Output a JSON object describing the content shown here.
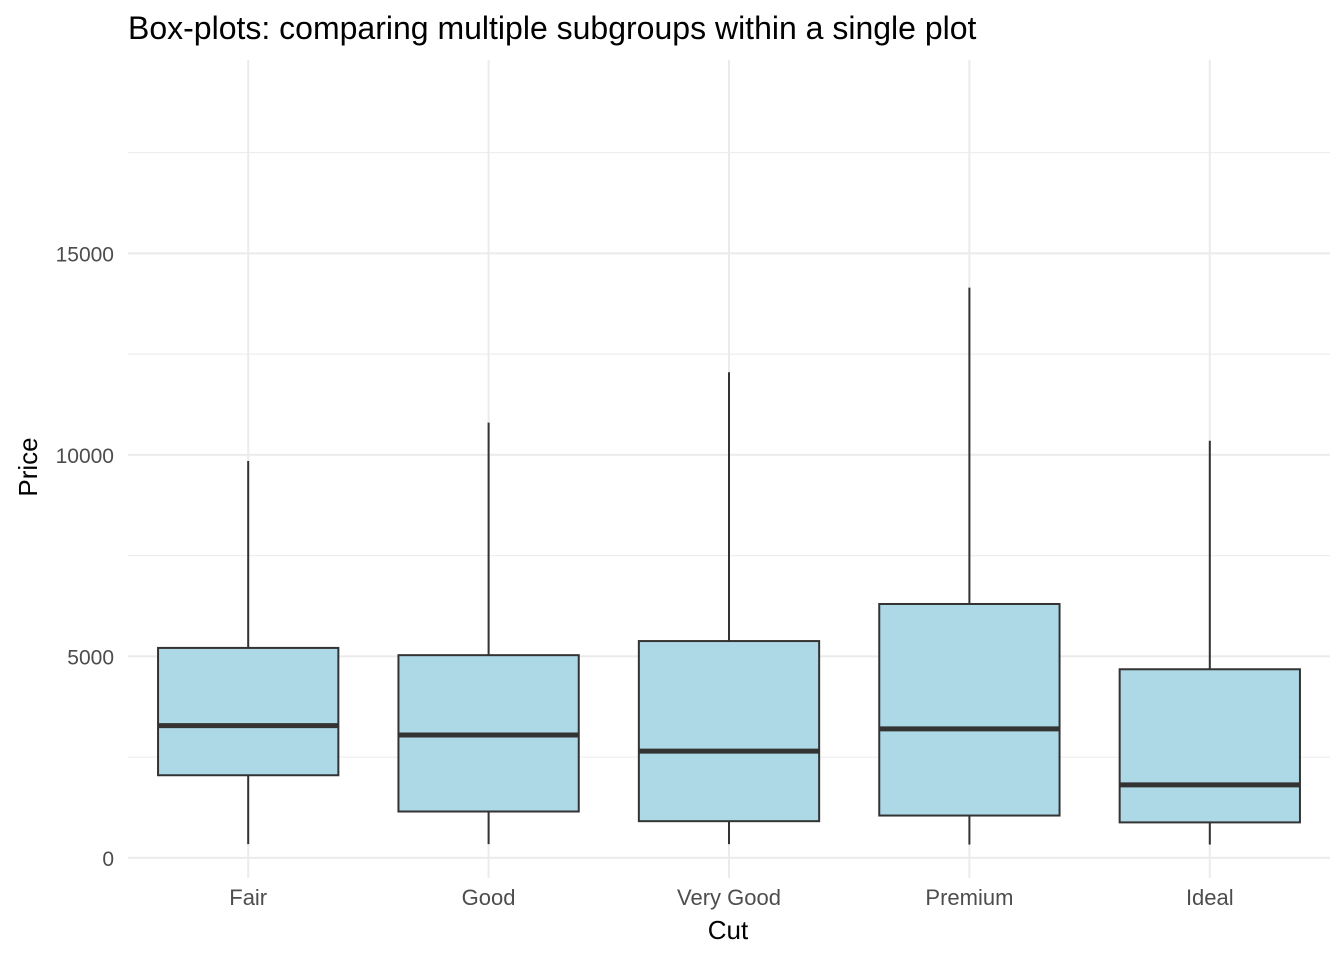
{
  "chart_data": {
    "type": "box",
    "title": "Box-plots: comparing multiple subgroups within a single plot",
    "xlabel": "Cut",
    "ylabel": "Price",
    "ylim": [
      -500,
      19800
    ],
    "yticks": [
      0,
      5000,
      10000,
      15000
    ],
    "yticks_minor": [
      2500,
      7500,
      12500,
      17500
    ],
    "grid": true,
    "box_fill": "#add8e6",
    "box_stroke": "#333333",
    "categories": [
      "Fair",
      "Good",
      "Very Good",
      "Premium",
      "Ideal"
    ],
    "boxes": [
      {
        "category": "Fair",
        "whisker_low": 340,
        "q1": 2050,
        "median": 3280,
        "q3": 5210,
        "whisker_high": 9850
      },
      {
        "category": "Good",
        "whisker_low": 340,
        "q1": 1150,
        "median": 3050,
        "q3": 5030,
        "whisker_high": 10800
      },
      {
        "category": "Very Good",
        "whisker_low": 340,
        "q1": 910,
        "median": 2650,
        "q3": 5380,
        "whisker_high": 12050
      },
      {
        "category": "Premium",
        "whisker_low": 330,
        "q1": 1050,
        "median": 3200,
        "q3": 6300,
        "whisker_high": 14150
      },
      {
        "category": "Ideal",
        "whisker_low": 330,
        "q1": 880,
        "median": 1810,
        "q3": 4680,
        "whisker_high": 10350
      }
    ]
  }
}
